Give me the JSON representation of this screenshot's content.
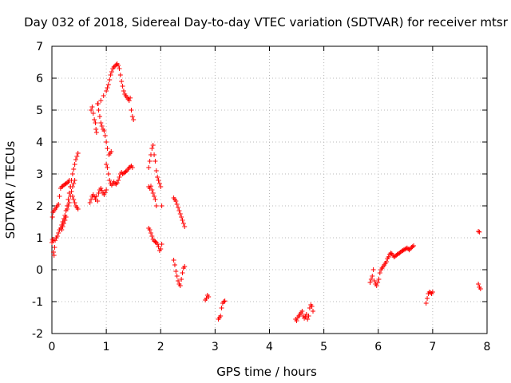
{
  "chart_data": {
    "type": "scatter",
    "title": "Day 032 of 2018, Sidereal Day-to-day VTEC variation (SDTVAR) for receiver mtsr",
    "xlabel": "GPS time / hours",
    "ylabel": "SDTVAR / TECUs",
    "xlim": [
      0,
      8
    ],
    "ylim": [
      -2,
      7
    ],
    "xticks": [
      0,
      1,
      2,
      3,
      4,
      5,
      6,
      7,
      8
    ],
    "yticks": [
      -2,
      -1,
      0,
      1,
      2,
      3,
      4,
      5,
      6,
      7
    ],
    "grid": true,
    "marker": "+",
    "marker_color": "#ff0000",
    "series": [
      {
        "name": "SDTVAR",
        "points": [
          [
            0.0,
            0.85
          ],
          [
            0.01,
            0.95
          ],
          [
            0.02,
            0.9
          ],
          [
            0.03,
            0.55
          ],
          [
            0.04,
            0.45
          ],
          [
            0.05,
            0.7
          ],
          [
            0.06,
            0.92
          ],
          [
            0.08,
            1.0
          ],
          [
            0.1,
            1.05
          ],
          [
            0.12,
            1.15
          ],
          [
            0.14,
            1.25
          ],
          [
            0.16,
            1.3
          ],
          [
            0.18,
            1.4
          ],
          [
            0.2,
            1.5
          ],
          [
            0.22,
            1.6
          ],
          [
            0.24,
            1.7
          ],
          [
            0.26,
            1.85
          ],
          [
            0.28,
            2.0
          ],
          [
            0.3,
            2.2
          ],
          [
            0.32,
            2.4
          ],
          [
            0.34,
            2.6
          ],
          [
            0.36,
            2.8
          ],
          [
            0.38,
            3.0
          ],
          [
            0.4,
            3.15
          ],
          [
            0.42,
            3.3
          ],
          [
            0.44,
            3.45
          ],
          [
            0.46,
            3.55
          ],
          [
            0.48,
            3.65
          ],
          [
            0.01,
            1.65
          ],
          [
            0.02,
            1.8
          ],
          [
            0.04,
            1.85
          ],
          [
            0.06,
            1.9
          ],
          [
            0.08,
            1.95
          ],
          [
            0.1,
            2.0
          ],
          [
            0.12,
            2.05
          ],
          [
            0.14,
            2.3
          ],
          [
            0.16,
            2.55
          ],
          [
            0.18,
            2.6
          ],
          [
            0.2,
            2.62
          ],
          [
            0.22,
            2.65
          ],
          [
            0.24,
            2.68
          ],
          [
            0.26,
            2.7
          ],
          [
            0.28,
            2.72
          ],
          [
            0.3,
            2.75
          ],
          [
            0.32,
            2.8
          ],
          [
            0.34,
            2.6
          ],
          [
            0.36,
            2.45
          ],
          [
            0.38,
            2.3
          ],
          [
            0.4,
            2.2
          ],
          [
            0.42,
            2.1
          ],
          [
            0.44,
            2.0
          ],
          [
            0.46,
            1.95
          ],
          [
            0.48,
            1.9
          ],
          [
            0.18,
            1.25
          ],
          [
            0.2,
            1.35
          ],
          [
            0.22,
            1.45
          ],
          [
            0.24,
            1.55
          ],
          [
            0.26,
            1.65
          ],
          [
            0.28,
            1.9
          ],
          [
            0.3,
            2.0
          ],
          [
            0.32,
            2.1
          ],
          [
            0.34,
            2.3
          ],
          [
            0.36,
            2.45
          ],
          [
            0.38,
            2.6
          ],
          [
            0.4,
            2.7
          ],
          [
            0.42,
            2.8
          ],
          [
            0.7,
            2.1
          ],
          [
            0.72,
            2.2
          ],
          [
            0.74,
            2.3
          ],
          [
            0.76,
            2.35
          ],
          [
            0.78,
            2.28
          ],
          [
            0.8,
            2.2
          ],
          [
            0.82,
            2.3
          ],
          [
            0.84,
            2.15
          ],
          [
            0.86,
            2.4
          ],
          [
            0.88,
            2.5
          ],
          [
            0.9,
            2.55
          ],
          [
            0.92,
            2.48
          ],
          [
            0.94,
            2.4
          ],
          [
            0.96,
            2.35
          ],
          [
            0.98,
            2.42
          ],
          [
            1.0,
            2.5
          ],
          [
            0.72,
            5.0
          ],
          [
            0.74,
            5.1
          ],
          [
            0.76,
            4.9
          ],
          [
            0.78,
            4.7
          ],
          [
            0.8,
            4.6
          ],
          [
            0.81,
            4.4
          ],
          [
            0.82,
            4.3
          ],
          [
            0.84,
            5.2
          ],
          [
            0.86,
            5.0
          ],
          [
            0.88,
            4.8
          ],
          [
            0.9,
            4.6
          ],
          [
            0.92,
            4.5
          ],
          [
            0.94,
            4.4
          ],
          [
            0.96,
            4.35
          ],
          [
            0.98,
            4.2
          ],
          [
            1.0,
            4.0
          ],
          [
            1.02,
            3.8
          ],
          [
            0.85,
            5.2
          ],
          [
            0.9,
            5.3
          ],
          [
            0.95,
            5.45
          ],
          [
            1.0,
            5.6
          ],
          [
            1.02,
            5.7
          ],
          [
            1.04,
            5.8
          ],
          [
            1.06,
            5.95
          ],
          [
            1.08,
            6.1
          ],
          [
            1.1,
            6.2
          ],
          [
            1.12,
            6.3
          ],
          [
            1.14,
            6.35
          ],
          [
            1.16,
            6.38
          ],
          [
            1.18,
            6.42
          ],
          [
            1.2,
            6.45
          ],
          [
            1.22,
            6.4
          ],
          [
            1.24,
            6.3
          ],
          [
            1.26,
            6.1
          ],
          [
            1.28,
            5.9
          ],
          [
            1.3,
            5.75
          ],
          [
            1.32,
            5.6
          ],
          [
            1.34,
            5.5
          ],
          [
            1.36,
            5.45
          ],
          [
            1.38,
            5.4
          ],
          [
            1.4,
            5.35
          ],
          [
            1.42,
            5.3
          ],
          [
            1.44,
            5.38
          ],
          [
            1.46,
            5.0
          ],
          [
            1.48,
            4.8
          ],
          [
            1.5,
            4.7
          ],
          [
            1.0,
            3.3
          ],
          [
            1.02,
            3.2
          ],
          [
            1.04,
            3.0
          ],
          [
            1.06,
            2.8
          ],
          [
            1.08,
            2.7
          ],
          [
            1.1,
            2.65
          ],
          [
            1.12,
            2.7
          ],
          [
            1.14,
            2.75
          ],
          [
            1.16,
            2.7
          ],
          [
            1.18,
            2.68
          ],
          [
            1.2,
            2.72
          ],
          [
            1.22,
            2.8
          ],
          [
            1.24,
            2.9
          ],
          [
            1.26,
            3.0
          ],
          [
            1.28,
            3.05
          ],
          [
            1.3,
            3.0
          ],
          [
            1.32,
            3.02
          ],
          [
            1.34,
            3.05
          ],
          [
            1.36,
            3.08
          ],
          [
            1.38,
            3.1
          ],
          [
            1.4,
            3.15
          ],
          [
            1.42,
            3.2
          ],
          [
            1.44,
            3.22
          ],
          [
            1.46,
            3.25
          ],
          [
            1.48,
            3.2
          ],
          [
            1.05,
            3.6
          ],
          [
            1.07,
            3.65
          ],
          [
            1.09,
            3.7
          ],
          [
            1.78,
            1.3
          ],
          [
            1.8,
            1.25
          ],
          [
            1.82,
            1.15
          ],
          [
            1.84,
            1.05
          ],
          [
            1.86,
            0.95
          ],
          [
            1.88,
            0.9
          ],
          [
            1.9,
            0.88
          ],
          [
            1.92,
            0.85
          ],
          [
            1.94,
            0.8
          ],
          [
            1.96,
            0.72
          ],
          [
            1.98,
            0.6
          ],
          [
            2.0,
            0.65
          ],
          [
            2.02,
            0.8
          ],
          [
            1.78,
            2.6
          ],
          [
            1.8,
            2.55
          ],
          [
            1.82,
            2.62
          ],
          [
            1.84,
            2.5
          ],
          [
            1.86,
            2.4
          ],
          [
            1.88,
            2.3
          ],
          [
            1.9,
            2.2
          ],
          [
            1.92,
            2.0
          ],
          [
            1.78,
            3.2
          ],
          [
            1.8,
            3.4
          ],
          [
            1.82,
            3.6
          ],
          [
            1.84,
            3.8
          ],
          [
            1.86,
            3.9
          ],
          [
            1.88,
            3.6
          ],
          [
            1.9,
            3.4
          ],
          [
            1.92,
            3.1
          ],
          [
            1.94,
            2.9
          ],
          [
            1.96,
            2.8
          ],
          [
            1.98,
            2.7
          ],
          [
            2.0,
            2.6
          ],
          [
            2.02,
            2.0
          ],
          [
            2.24,
            2.25
          ],
          [
            2.26,
            2.2
          ],
          [
            2.28,
            2.15
          ],
          [
            2.3,
            2.05
          ],
          [
            2.32,
            1.95
          ],
          [
            2.34,
            1.85
          ],
          [
            2.36,
            1.75
          ],
          [
            2.38,
            1.65
          ],
          [
            2.4,
            1.55
          ],
          [
            2.42,
            1.45
          ],
          [
            2.44,
            1.35
          ],
          [
            2.24,
            0.3
          ],
          [
            2.26,
            0.15
          ],
          [
            2.28,
            -0.05
          ],
          [
            2.3,
            -0.2
          ],
          [
            2.32,
            -0.35
          ],
          [
            2.34,
            -0.45
          ],
          [
            2.36,
            -0.5
          ],
          [
            2.38,
            -0.3
          ],
          [
            2.4,
            -0.1
          ],
          [
            2.42,
            0.05
          ],
          [
            2.44,
            0.1
          ],
          [
            2.82,
            -0.95
          ],
          [
            2.84,
            -0.9
          ],
          [
            2.86,
            -0.8
          ],
          [
            2.88,
            -0.85
          ],
          [
            3.06,
            -1.55
          ],
          [
            3.08,
            -1.5
          ],
          [
            3.1,
            -1.45
          ],
          [
            3.12,
            -1.2
          ],
          [
            3.14,
            -1.05
          ],
          [
            3.16,
            -1.0
          ],
          [
            3.18,
            -0.98
          ],
          [
            4.48,
            -1.55
          ],
          [
            4.5,
            -1.6
          ],
          [
            4.52,
            -1.5
          ],
          [
            4.54,
            -1.45
          ],
          [
            4.56,
            -1.4
          ],
          [
            4.58,
            -1.35
          ],
          [
            4.6,
            -1.3
          ],
          [
            4.62,
            -1.45
          ],
          [
            4.64,
            -1.52
          ],
          [
            4.66,
            -1.48
          ],
          [
            4.68,
            -1.4
          ],
          [
            4.7,
            -1.55
          ],
          [
            4.72,
            -1.45
          ],
          [
            4.74,
            -1.2
          ],
          [
            4.76,
            -1.1
          ],
          [
            4.78,
            -1.15
          ],
          [
            4.8,
            -1.3
          ],
          [
            5.85,
            -0.4
          ],
          [
            5.87,
            -0.3
          ],
          [
            5.89,
            -0.2
          ],
          [
            5.91,
            0.0
          ],
          [
            5.93,
            -0.35
          ],
          [
            5.95,
            -0.45
          ],
          [
            5.97,
            -0.5
          ],
          [
            5.99,
            -0.4
          ],
          [
            6.01,
            -0.3
          ],
          [
            6.03,
            -0.1
          ],
          [
            6.05,
            0.0
          ],
          [
            6.07,
            0.05
          ],
          [
            6.09,
            0.1
          ],
          [
            6.11,
            0.15
          ],
          [
            6.13,
            0.2
          ],
          [
            6.15,
            0.25
          ],
          [
            6.17,
            0.35
          ],
          [
            6.19,
            0.4
          ],
          [
            6.21,
            0.48
          ],
          [
            6.23,
            0.52
          ],
          [
            6.25,
            0.5
          ],
          [
            6.27,
            0.45
          ],
          [
            6.29,
            0.4
          ],
          [
            6.31,
            0.42
          ],
          [
            6.33,
            0.45
          ],
          [
            6.35,
            0.48
          ],
          [
            6.37,
            0.5
          ],
          [
            6.39,
            0.52
          ],
          [
            6.41,
            0.55
          ],
          [
            6.43,
            0.58
          ],
          [
            6.45,
            0.6
          ],
          [
            6.47,
            0.62
          ],
          [
            6.49,
            0.64
          ],
          [
            6.51,
            0.66
          ],
          [
            6.53,
            0.68
          ],
          [
            6.55,
            0.65
          ],
          [
            6.57,
            0.62
          ],
          [
            6.59,
            0.66
          ],
          [
            6.61,
            0.7
          ],
          [
            6.63,
            0.72
          ],
          [
            6.65,
            0.75
          ],
          [
            6.88,
            -1.05
          ],
          [
            6.9,
            -0.9
          ],
          [
            6.92,
            -0.75
          ],
          [
            6.94,
            -0.7
          ],
          [
            6.96,
            -0.72
          ],
          [
            6.98,
            -0.75
          ],
          [
            7.0,
            -0.7
          ],
          [
            7.84,
            1.2
          ],
          [
            7.86,
            1.18
          ],
          [
            7.84,
            -0.45
          ],
          [
            7.86,
            -0.55
          ],
          [
            7.88,
            -0.6
          ]
        ]
      }
    ]
  }
}
